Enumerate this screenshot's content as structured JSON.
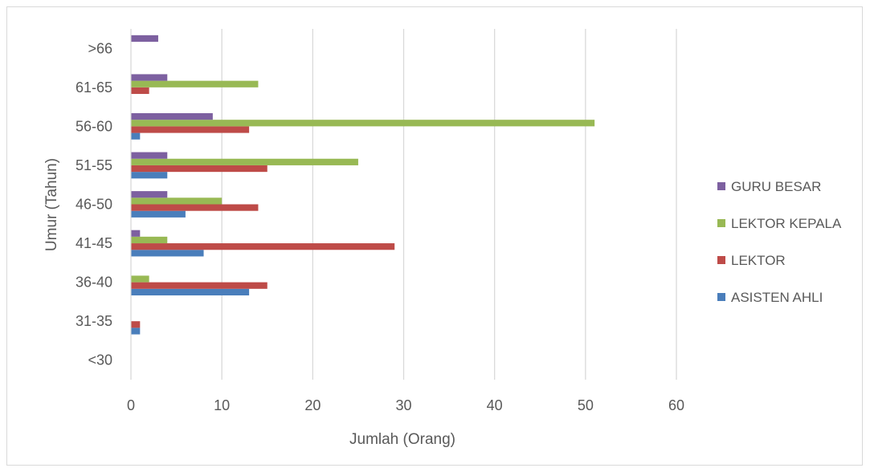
{
  "chart_data": {
    "type": "bar",
    "orientation": "horizontal",
    "categories": [
      "<30",
      "31-35",
      "36-40",
      "41-45",
      "46-50",
      "51-55",
      "56-60",
      "61-65",
      ">66"
    ],
    "series": [
      {
        "name": "ASISTEN AHLI",
        "color": "#4a7ebb",
        "values": [
          0,
          1,
          13,
          8,
          6,
          4,
          1,
          0,
          0
        ]
      },
      {
        "name": "LEKTOR",
        "color": "#be4b48",
        "values": [
          0,
          1,
          15,
          29,
          14,
          15,
          13,
          2,
          0
        ]
      },
      {
        "name": "LEKTOR KEPALA",
        "color": "#98b954",
        "values": [
          0,
          0,
          2,
          4,
          10,
          25,
          51,
          14,
          0
        ]
      },
      {
        "name": "GURU BESAR",
        "color": "#7d60a0",
        "values": [
          0,
          0,
          0,
          1,
          4,
          4,
          9,
          4,
          3
        ]
      }
    ],
    "xlim": [
      0,
      60
    ],
    "xticks": [
      "0",
      "10",
      "20",
      "30",
      "40",
      "50",
      "60"
    ],
    "xlabel": "Jumlah (Orang)",
    "ylabel": "Umur (Tahun)",
    "legend_order": [
      "GURU BESAR",
      "LEKTOR KEPALA",
      "LEKTOR",
      "ASISTEN AHLI"
    ],
    "legend_position": "right",
    "grid": true
  }
}
